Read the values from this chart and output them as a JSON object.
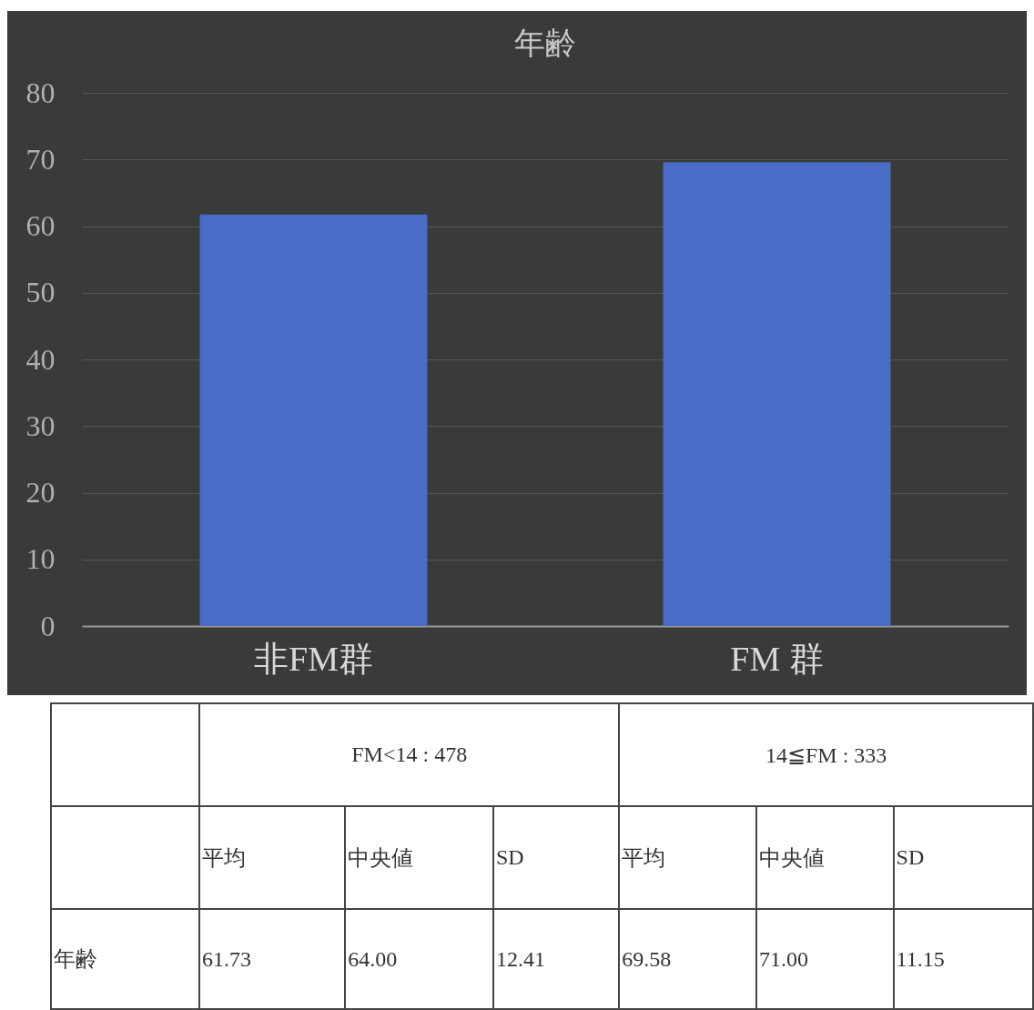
{
  "chart_data": [
    {
      "type": "bar",
      "title": "年齢",
      "categories": [
        "非FM群",
        "FM 群"
      ],
      "values": [
        61.73,
        69.58
      ],
      "color": "#4a6bc6",
      "ylim": [
        0,
        80
      ],
      "yticks": [
        0,
        10,
        20,
        30,
        40,
        50,
        60,
        70,
        80
      ],
      "grid": "y"
    },
    {
      "type": "other",
      "annotations": [
        "FM<14 : 478",
        "14≦FM : 333",
        "平均",
        "中央値",
        "SD",
        "平均",
        "中央値",
        "SD",
        "年齢",
        "61.73",
        "64.00",
        "12.41",
        "69.58",
        "71.00",
        "11.15"
      ]
    }
  ]
}
